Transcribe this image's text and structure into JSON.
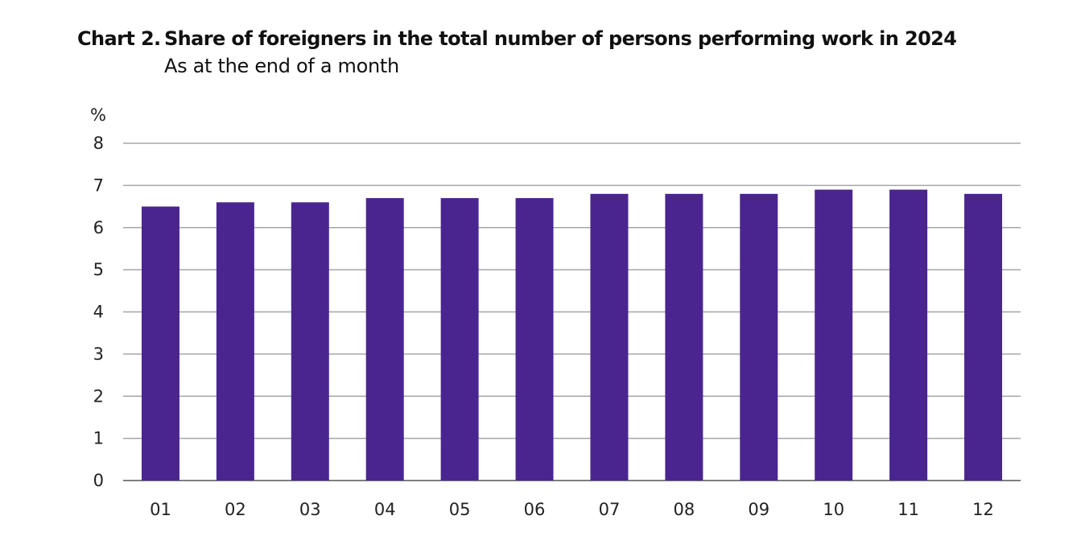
{
  "title_prefix": "Chart 2.",
  "chart_data": {
    "type": "bar",
    "title": "Share of foreigners in the total number of persons performing work in 2024",
    "subtitle": "As at the end of a month",
    "ylabel": "%",
    "xlabel": "",
    "categories": [
      "01",
      "02",
      "03",
      "04",
      "05",
      "06",
      "07",
      "08",
      "09",
      "10",
      "11",
      "12"
    ],
    "values": [
      6.5,
      6.6,
      6.6,
      6.7,
      6.7,
      6.7,
      6.8,
      6.8,
      6.8,
      6.9,
      6.9,
      6.8
    ],
    "ylim": [
      0,
      8
    ],
    "yticks": [
      "0",
      "1",
      "2",
      "3",
      "4",
      "5",
      "6",
      "7",
      "8"
    ],
    "grid": true,
    "colors": {
      "bar": "#4a2590",
      "grid": "#a6a6a6",
      "axis": "#7f7f7f"
    }
  }
}
